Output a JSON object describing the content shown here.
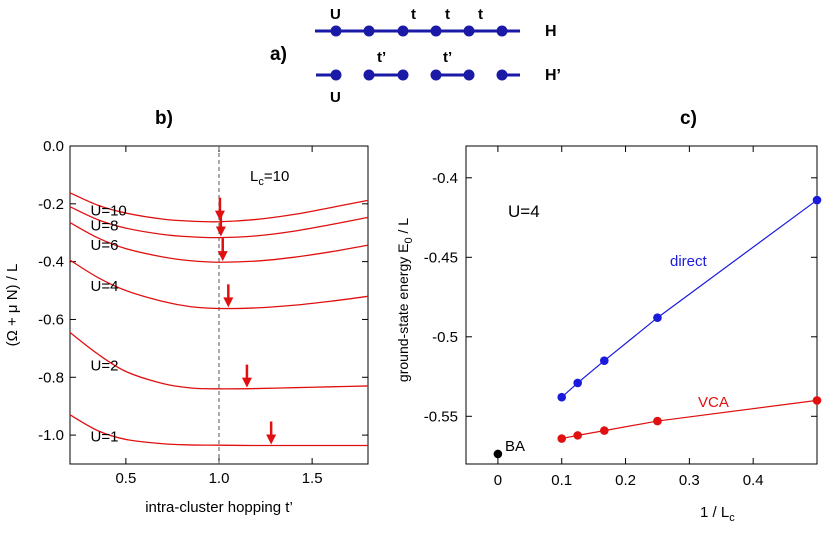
{
  "panel_a": {
    "label": "a)",
    "chain_label": "H",
    "cluster_label": "H’",
    "u_label": "U",
    "t_label": "t",
    "tp_label": "t’",
    "color": "#1a1aa6"
  },
  "chart_data": [
    {
      "panel": "b)",
      "type": "line",
      "xlabel": "intra-cluster hopping  t’",
      "ylabel": "(Ω + μ N) / L",
      "xlim": [
        0.2,
        1.8
      ],
      "ylim": [
        -1.1,
        0.0
      ],
      "xticks": [
        0.5,
        1.0,
        1.5
      ],
      "xtick_labels": [
        "0.5",
        "1.0",
        "1.5"
      ],
      "yticks": [
        0.0,
        -0.2,
        -0.4,
        -0.6,
        -0.8,
        -1.0
      ],
      "ytick_labels": [
        "0.0",
        "-0.2",
        "-0.4",
        "-0.6",
        "-0.8",
        "-1.0"
      ],
      "vline_x": 1.0,
      "annotation": "L",
      "annotation_sub": "c",
      "annotation_suffix": "=10",
      "color": "#e01010",
      "series": [
        {
          "name": "U=10",
          "x": [
            0.2,
            0.35,
            0.5,
            0.7,
            0.85,
            1.0,
            1.2,
            1.4,
            1.6,
            1.8
          ],
          "y": [
            -0.162,
            -0.205,
            -0.232,
            -0.253,
            -0.26,
            -0.262,
            -0.254,
            -0.237,
            -0.213,
            -0.188
          ],
          "arrow_x": 1.005
        },
        {
          "name": "U=8",
          "x": [
            0.2,
            0.35,
            0.5,
            0.7,
            0.85,
            1.0,
            1.2,
            1.4,
            1.6,
            1.8
          ],
          "y": [
            -0.21,
            -0.255,
            -0.284,
            -0.306,
            -0.314,
            -0.317,
            -0.311,
            -0.295,
            -0.272,
            -0.247
          ],
          "arrow_x": 1.01
        },
        {
          "name": "U=6",
          "x": [
            0.2,
            0.35,
            0.5,
            0.7,
            0.85,
            1.0,
            1.2,
            1.4,
            1.6,
            1.8
          ],
          "y": [
            -0.265,
            -0.318,
            -0.355,
            -0.384,
            -0.397,
            -0.402,
            -0.398,
            -0.385,
            -0.366,
            -0.343
          ],
          "arrow_x": 1.02
        },
        {
          "name": "U=4",
          "x": [
            0.2,
            0.35,
            0.5,
            0.7,
            0.85,
            1.0,
            1.2,
            1.4,
            1.6,
            1.8
          ],
          "y": [
            -0.395,
            -0.455,
            -0.5,
            -0.538,
            -0.556,
            -0.562,
            -0.56,
            -0.551,
            -0.537,
            -0.52
          ],
          "arrow_x": 1.05
        },
        {
          "name": "U=2",
          "x": [
            0.2,
            0.35,
            0.5,
            0.7,
            0.85,
            1.0,
            1.2,
            1.4,
            1.6,
            1.8
          ],
          "y": [
            -0.645,
            -0.72,
            -0.78,
            -0.822,
            -0.837,
            -0.84,
            -0.839,
            -0.836,
            -0.833,
            -0.83
          ],
          "arrow_x": 1.15
        },
        {
          "name": "U=1",
          "x": [
            0.2,
            0.35,
            0.5,
            0.7,
            0.85,
            1.0,
            1.2,
            1.4,
            1.6,
            1.8
          ],
          "y": [
            -0.93,
            -0.985,
            -1.015,
            -1.03,
            -1.034,
            -1.035,
            -1.036,
            -1.036,
            -1.036,
            -1.036
          ],
          "arrow_x": 1.28
        }
      ]
    },
    {
      "panel": "c)",
      "type": "scatter",
      "xlabel": "1 / L",
      "xlabel_sub": "c",
      "ylabel": "ground-state energy  E",
      "ylabel_sub": "0",
      "ylabel_suffix": " / L",
      "xlim": [
        -0.05,
        0.5
      ],
      "ylim": [
        -0.58,
        -0.38
      ],
      "xticks": [
        0.0,
        0.1,
        0.2,
        0.3,
        0.4
      ],
      "xtick_labels": [
        "0",
        "0.1",
        "0.2",
        "0.3",
        "0.4"
      ],
      "yticks": [
        -0.4,
        -0.45,
        -0.5,
        -0.55
      ],
      "ytick_labels": [
        "-0.4",
        "-0.45",
        "-0.5",
        "-0.55"
      ],
      "annotation": "U=4",
      "series": [
        {
          "name": "direct",
          "color": "#1a1add",
          "x": [
            0.1,
            0.125,
            0.1667,
            0.25,
            0.5
          ],
          "y": [
            -0.538,
            -0.529,
            -0.515,
            -0.488,
            -0.414
          ]
        },
        {
          "name": "VCA",
          "color": "#e01010",
          "x": [
            0.1,
            0.125,
            0.1667,
            0.25,
            0.5
          ],
          "y": [
            -0.564,
            -0.562,
            -0.559,
            -0.553,
            -0.54
          ]
        },
        {
          "name": "BA",
          "color": "#000000",
          "x": [
            0.0
          ],
          "y": [
            -0.5737
          ]
        }
      ]
    }
  ]
}
